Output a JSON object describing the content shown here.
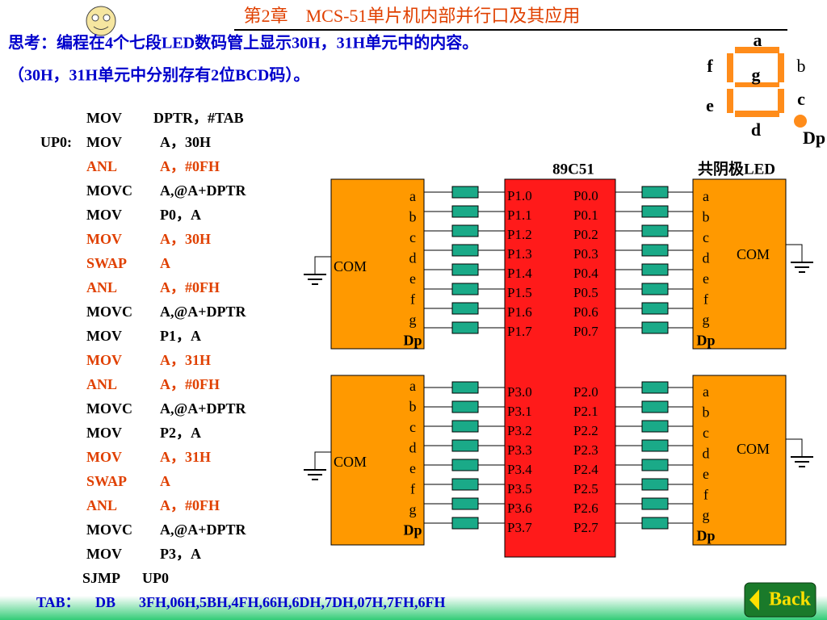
{
  "header": {
    "title": "第2章　MCS-51单片机内部并行口及其应用"
  },
  "question": {
    "line1": "思考：编程在4个七段LED数码管上显示30H，31H单元中的内容。",
    "line2": "（30H，31H单元中分别存有2位BCD码）。"
  },
  "code": [
    {
      "op": "MOV",
      "arg": "DPTR，#TAB"
    },
    {
      "label": "UP0:",
      "op": "MOV",
      "arg": "A，30H"
    },
    {
      "op": "ANL",
      "arg": "A，#0FH",
      "highlight": true
    },
    {
      "op": "MOVC",
      "arg": "A,@A+DPTR"
    },
    {
      "op": "MOV",
      "arg": "P0，A"
    },
    {
      "op": "MOV",
      "arg": "A，30H",
      "highlight": true
    },
    {
      "op": "SWAP",
      "arg": "A",
      "highlight": true
    },
    {
      "op": "ANL",
      "arg": "A，#0FH",
      "highlight": true
    },
    {
      "op": "MOVC",
      "arg": "A,@A+DPTR"
    },
    {
      "op": "MOV",
      "arg": "P1，A"
    },
    {
      "op": "MOV",
      "arg": "A，31H",
      "highlight": true
    },
    {
      "op": "ANL",
      "arg": "A，#0FH",
      "highlight": true
    },
    {
      "op": "MOVC",
      "arg": "A,@A+DPTR"
    },
    {
      "op": "MOV",
      "arg": "P2，A"
    },
    {
      "op": "MOV",
      "arg": "A，31H",
      "highlight": true
    },
    {
      "op": "SWAP",
      "arg": "A",
      "highlight": true
    },
    {
      "op": "ANL",
      "arg": "A，#0FH",
      "highlight": true
    },
    {
      "op": "MOVC",
      "arg": "A,@A+DPTR"
    },
    {
      "op": "MOV",
      "arg": "P3，A"
    },
    {
      "op": "SJMP",
      "arg": "UP0"
    }
  ],
  "tab": {
    "label": "TAB：",
    "op": "DB",
    "arg": "3FH,06H,5BH,4FH,66H,6DH,7DH,07H,7FH,6FH"
  },
  "segment_labels": {
    "a": "a",
    "b": "b",
    "c": "c",
    "d": "d",
    "e": "e",
    "f": "f",
    "g": "g",
    "dp": "Dp"
  },
  "chip": {
    "name": "89C51",
    "left_top": [
      "P1.0",
      "P1.1",
      "P1.2",
      "P1.3",
      "P1.4",
      "P1.5",
      "P1.6",
      "P1.7"
    ],
    "right_top": [
      "P0.0",
      "P0.1",
      "P0.2",
      "P0.3",
      "P0.4",
      "P0.5",
      "P0.6",
      "P0.7"
    ],
    "left_bottom": [
      "P3.0",
      "P3.1",
      "P3.2",
      "P3.3",
      "P3.4",
      "P3.5",
      "P3.6",
      "P3.7"
    ],
    "right_bottom": [
      "P2.0",
      "P2.1",
      "P2.2",
      "P2.3",
      "P2.4",
      "P2.5",
      "P2.6",
      "P2.7"
    ]
  },
  "led": {
    "title": "共阴极LED",
    "pins": [
      "a",
      "b",
      "c",
      "d",
      "e",
      "f",
      "g",
      "Dp"
    ],
    "com": "COM"
  },
  "back": "Back"
}
